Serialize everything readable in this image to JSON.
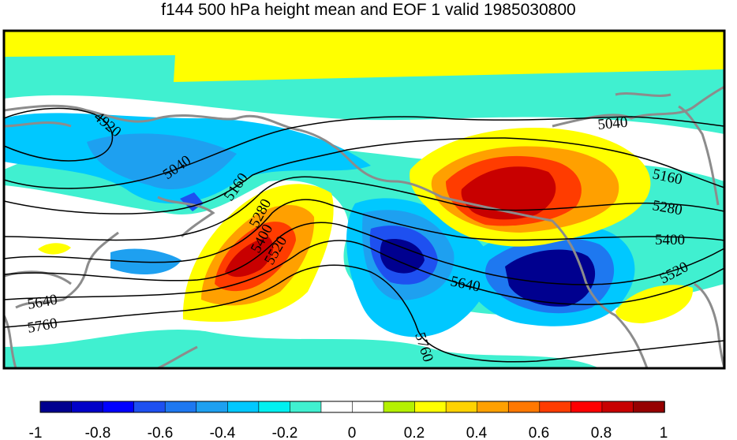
{
  "title": "f144 500 hPa height mean and EOF 1 valid 1985030800",
  "contour_labels": [
    "4920",
    "5040",
    "5160",
    "5280",
    "5400",
    "5520",
    "5640",
    "5760",
    "5040",
    "5160",
    "5280",
    "5400",
    "5520",
    "5640",
    "5760"
  ],
  "colorbar": {
    "ticks": [
      "-1",
      "-0.8",
      "-0.6",
      "-0.4",
      "-0.2",
      "0",
      "0.2",
      "0.4",
      "0.6",
      "0.8",
      "1"
    ],
    "colors": [
      "#00008f",
      "#0000c8",
      "#0000ff",
      "#1e50f0",
      "#1e78f0",
      "#1ea0f0",
      "#00c8ff",
      "#00f0f0",
      "#40f0d0",
      "#ffffff",
      "#ffffff",
      "#b4f000",
      "#ffff00",
      "#ffd200",
      "#ffa000",
      "#ff7800",
      "#ff3c00",
      "#ff0000",
      "#c80000",
      "#960000"
    ]
  },
  "chart_data": {
    "type": "heatmap",
    "title": "f144 500 hPa height mean and EOF 1 valid 1985030800",
    "contour_levels": [
      4920,
      5040,
      5160,
      5280,
      5400,
      5520,
      5640,
      5760
    ],
    "colorbar_range": [
      -1,
      1
    ],
    "colorbar_interval": 0.1
  }
}
